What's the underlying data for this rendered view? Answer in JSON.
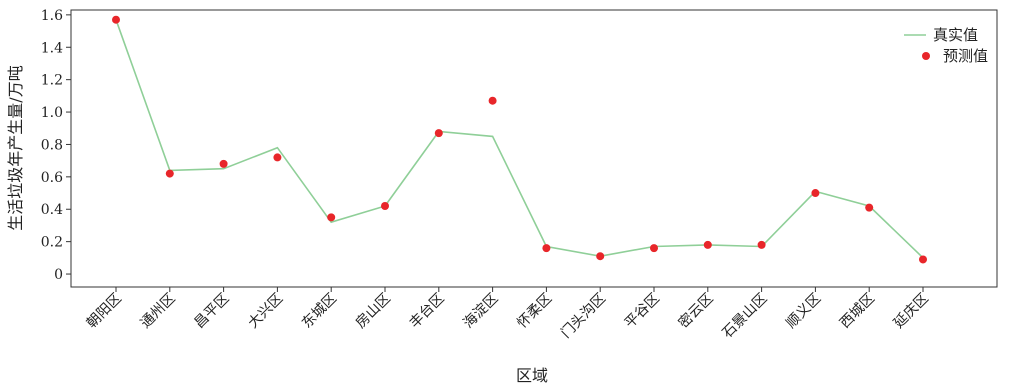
{
  "chart_data": {
    "type": "line",
    "xlabel": "区域",
    "ylabel": "生活垃圾年产生量/万吨",
    "categories": [
      "朝阳区",
      "通州区",
      "昌平区",
      "大兴区",
      "东城区",
      "房山区",
      "丰台区",
      "海淀区",
      "怀柔区",
      "门头沟区",
      "平谷区",
      "密云区",
      "石景山区",
      "顺义区",
      "西城区",
      "延庆区"
    ],
    "ylim": [
      -0.08,
      1.63
    ],
    "yticks": [
      0,
      0.2,
      0.4,
      0.6,
      0.8,
      1.0,
      1.2,
      1.4,
      1.6
    ],
    "ytick_labels": [
      "0",
      "0.2",
      "0.4",
      "0.6",
      "0.8",
      "1.0",
      "1.2",
      "1.4",
      "1.6"
    ],
    "series": [
      {
        "name": "真实值",
        "kind": "line",
        "color": "#8fcf98",
        "values": [
          1.57,
          0.64,
          0.65,
          0.78,
          0.32,
          0.42,
          0.88,
          0.85,
          0.17,
          0.11,
          0.17,
          0.18,
          0.17,
          0.51,
          0.42,
          0.1
        ]
      },
      {
        "name": "预测值",
        "kind": "scatter",
        "color": "#e8262a",
        "values": [
          1.57,
          0.62,
          0.68,
          0.72,
          0.35,
          0.42,
          0.87,
          1.07,
          0.16,
          0.11,
          0.16,
          0.18,
          0.18,
          0.5,
          0.41,
          0.09
        ]
      }
    ],
    "legend_position": "top-right",
    "grid": false
  }
}
